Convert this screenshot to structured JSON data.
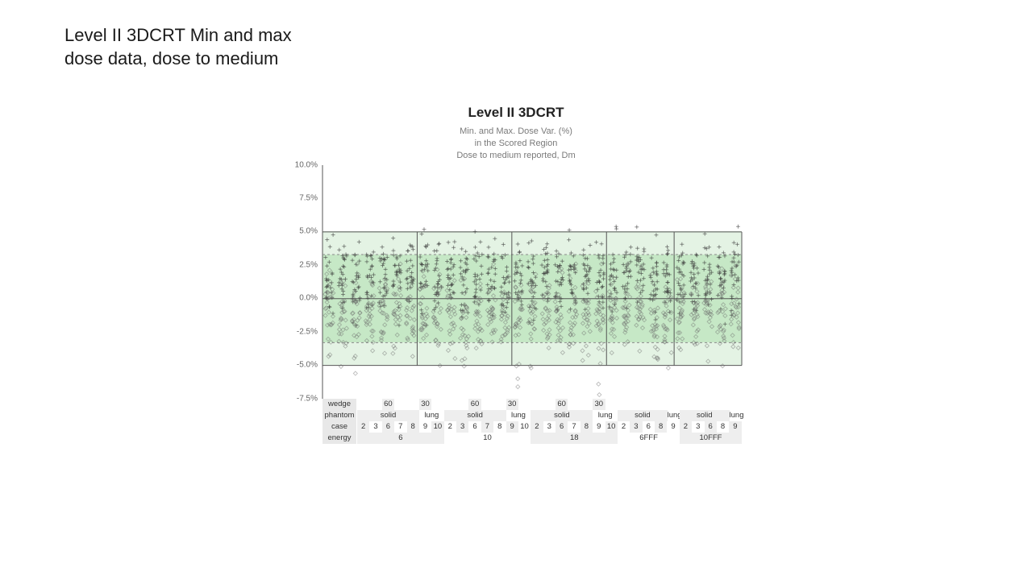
{
  "slide_title_l1": "Level II 3DCRT Min and max",
  "slide_title_l2": "dose data, dose to medium",
  "chart": {
    "type": "scatter",
    "title": "Level II 3DCRT",
    "subtitle_l1": "Min. and Max. Dose Var. (%)",
    "subtitle_l2": "in the Scored Region",
    "subtitle_l3": "Dose to medium reported, Dm",
    "ylim": [
      -7.5,
      10.0
    ],
    "yticks": [
      -7.5,
      -5.0,
      -2.5,
      0.0,
      2.5,
      5.0,
      7.5,
      10.0
    ],
    "ytick_labels": [
      "-7.5%",
      "-5.0%",
      "-2.5%",
      "0.0%",
      "2.5%",
      "5.0%",
      "7.5%",
      "10.0%"
    ],
    "bands": [
      {
        "from": -5.0,
        "to": 5.0,
        "fill": "#e4f3e4"
      },
      {
        "from": -3.3,
        "to": 3.3,
        "fill": "#c6e8c6"
      }
    ],
    "dashed_lines": [
      -3.3,
      3.3
    ],
    "zero_line": 0.0,
    "axis_color": "#555555",
    "dashed_color": "#8a8a8a",
    "plot_bg": "#ffffff",
    "marker_plus": {
      "shape": "plus",
      "color": "#3a3a3a",
      "size": 5,
      "opacity": 0.55
    },
    "marker_diamond": {
      "shape": "diamond",
      "color": "#6a6a6a",
      "size": 5,
      "opacity": 0.45
    },
    "columns": [
      {
        "energy": "6",
        "phantom": "solid",
        "case": "2",
        "wedge": "",
        "sep_before": true
      },
      {
        "energy": "6",
        "phantom": "solid",
        "case": "3",
        "wedge": ""
      },
      {
        "energy": "6",
        "phantom": "solid",
        "case": "6",
        "wedge": "60"
      },
      {
        "energy": "6",
        "phantom": "solid",
        "case": "7",
        "wedge": ""
      },
      {
        "energy": "6",
        "phantom": "solid",
        "case": "8",
        "wedge": ""
      },
      {
        "energy": "6",
        "phantom": "lung",
        "case": "9",
        "wedge": "30"
      },
      {
        "energy": "6",
        "phantom": "lung",
        "case": "10",
        "wedge": ""
      },
      {
        "energy": "10",
        "phantom": "solid",
        "case": "2",
        "wedge": "",
        "sep_before": true
      },
      {
        "energy": "10",
        "phantom": "solid",
        "case": "3",
        "wedge": ""
      },
      {
        "energy": "10",
        "phantom": "solid",
        "case": "6",
        "wedge": "60"
      },
      {
        "energy": "10",
        "phantom": "solid",
        "case": "7",
        "wedge": ""
      },
      {
        "energy": "10",
        "phantom": "solid",
        "case": "8",
        "wedge": ""
      },
      {
        "energy": "10",
        "phantom": "lung",
        "case": "9",
        "wedge": "30"
      },
      {
        "energy": "10",
        "phantom": "lung",
        "case": "10",
        "wedge": ""
      },
      {
        "energy": "18",
        "phantom": "solid",
        "case": "2",
        "wedge": "",
        "sep_before": true
      },
      {
        "energy": "18",
        "phantom": "solid",
        "case": "3",
        "wedge": ""
      },
      {
        "energy": "18",
        "phantom": "solid",
        "case": "6",
        "wedge": "60"
      },
      {
        "energy": "18",
        "phantom": "solid",
        "case": "7",
        "wedge": ""
      },
      {
        "energy": "18",
        "phantom": "solid",
        "case": "8",
        "wedge": ""
      },
      {
        "energy": "18",
        "phantom": "lung",
        "case": "9",
        "wedge": "30"
      },
      {
        "energy": "18",
        "phantom": "lung",
        "case": "10",
        "wedge": ""
      },
      {
        "energy": "6FFF",
        "phantom": "solid",
        "case": "2",
        "wedge": "",
        "sep_before": true
      },
      {
        "energy": "6FFF",
        "phantom": "solid",
        "case": "3",
        "wedge": ""
      },
      {
        "energy": "6FFF",
        "phantom": "solid",
        "case": "6",
        "wedge": ""
      },
      {
        "energy": "6FFF",
        "phantom": "solid",
        "case": "8",
        "wedge": ""
      },
      {
        "energy": "6FFF",
        "phantom": "lung",
        "case": "9",
        "wedge": ""
      },
      {
        "energy": "10FFF",
        "phantom": "solid",
        "case": "2",
        "wedge": "",
        "sep_before": true
      },
      {
        "energy": "10FFF",
        "phantom": "solid",
        "case": "3",
        "wedge": ""
      },
      {
        "energy": "10FFF",
        "phantom": "solid",
        "case": "6",
        "wedge": ""
      },
      {
        "energy": "10FFF",
        "phantom": "solid",
        "case": "8",
        "wedge": ""
      },
      {
        "energy": "10FFF",
        "phantom": "lung",
        "case": "9",
        "wedge": ""
      }
    ],
    "plus_dist": {
      "mean": 1.6,
      "sd": 1.4,
      "n": 26,
      "floor": -2.0,
      "ceil": 5.4
    },
    "diamond_dist": {
      "mean": -1.2,
      "sd": 1.5,
      "n": 26,
      "floor": -5.2,
      "ceil": 2.6
    },
    "outlier_cols": {
      "14": [
        -6.0,
        -6.6
      ],
      "20": [
        -7.2,
        -6.4
      ],
      "2": [
        -5.6
      ]
    },
    "cat_rows": [
      "wedge",
      "phantom",
      "case",
      "energy"
    ],
    "energy_groups": [
      {
        "label": "6",
        "span": 7
      },
      {
        "label": "10",
        "span": 7
      },
      {
        "label": "18",
        "span": 7
      },
      {
        "label": "6FFF",
        "span": 5
      },
      {
        "label": "10FFF",
        "span": 5
      }
    ],
    "phantom_groups": [
      {
        "label": "solid",
        "span": 5
      },
      {
        "label": "lung",
        "span": 2
      },
      {
        "label": "solid",
        "span": 5
      },
      {
        "label": "lung",
        "span": 2
      },
      {
        "label": "solid",
        "span": 5
      },
      {
        "label": "lung",
        "span": 2
      },
      {
        "label": "solid",
        "span": 4
      },
      {
        "label": "lung",
        "span": 1
      },
      {
        "label": "solid",
        "span": 4
      },
      {
        "label": "lung",
        "span": 1
      }
    ]
  }
}
